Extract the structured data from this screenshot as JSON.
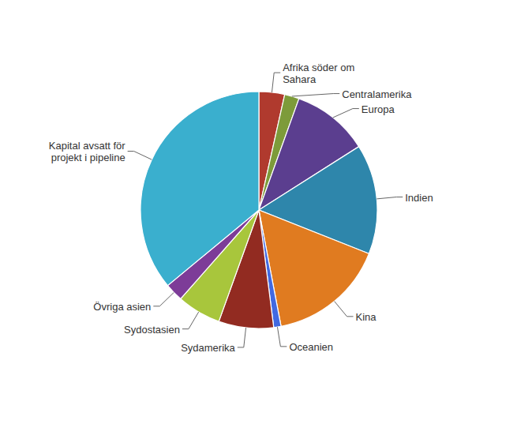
{
  "chart_data": {
    "type": "pie",
    "categories": [
      "Afrika söder om\nSahara",
      "Centralamerika",
      "Europa",
      "Indien",
      "Kina",
      "Oceanien",
      "Sydamerika",
      "Sydostasien",
      "Övriga asien",
      "Kapital avsatt för\nprojekt i pipeline"
    ],
    "values": [
      3.5,
      2.0,
      10.5,
      15.0,
      16.0,
      1.0,
      7.5,
      6.0,
      2.5,
      36.0
    ],
    "colors": [
      "#B03A2E",
      "#7D9B3A",
      "#5B3E8F",
      "#2E86AB",
      "#E07B20",
      "#4169E1",
      "#922B21",
      "#A8C63C",
      "#7D3C98",
      "#3AAFCE"
    ]
  }
}
